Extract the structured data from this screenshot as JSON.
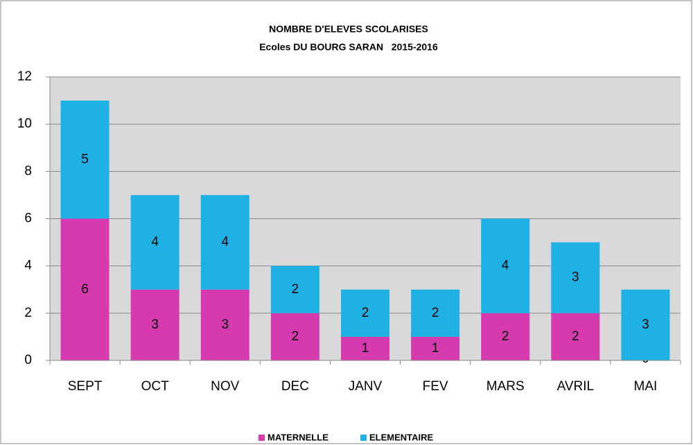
{
  "chart_data": {
    "type": "bar",
    "stacked": true,
    "title": "NOMBRE D'ELEVES SCOLARISES",
    "subtitle": "Ecoles DU BOURG SARAN   2015-2016",
    "categories": [
      "SEPT",
      "OCT",
      "NOV",
      "DEC",
      "JANV",
      "FEV",
      "MARS",
      "AVRIL",
      "MAI"
    ],
    "series": [
      {
        "name": "MATERNELLE",
        "color": "#d63aaf",
        "values": [
          6,
          3,
          3,
          2,
          1,
          1,
          2,
          2,
          0
        ]
      },
      {
        "name": "ELEMENTAIRE",
        "color": "#1fb0e4",
        "values": [
          5,
          4,
          4,
          2,
          2,
          2,
          4,
          3,
          3
        ]
      }
    ],
    "ylim": [
      0,
      12
    ],
    "yticks": [
      0,
      2,
      4,
      6,
      8,
      10,
      12
    ],
    "grid": true,
    "legend": "bottom"
  }
}
